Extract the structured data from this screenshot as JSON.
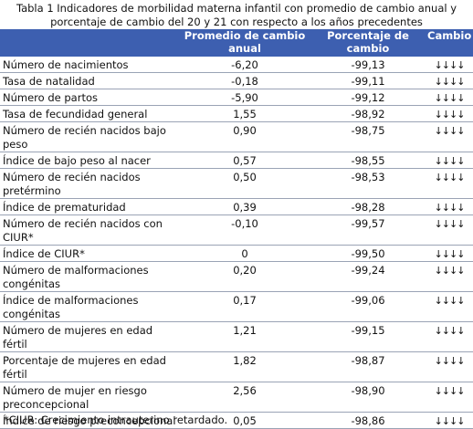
{
  "caption": "Tabla 1 Indicadores de morbilidad materna infantil con promedio de cambio anual y porcentaje de cambio del 20 y 21 con respecto a los años precedentes",
  "headers": [
    "",
    "Promedio de cambio anual",
    "Porcentaje de cambio",
    "Cambio"
  ],
  "rows": [
    {
      "label": "Número de nacimientos",
      "avg": "-6,20",
      "pct": "-99,13",
      "arrows": "↓↓↓↓"
    },
    {
      "label": "Tasa de natalidad",
      "avg": "-0,18",
      "pct": "-99,11",
      "arrows": "↓↓↓↓"
    },
    {
      "label": "Número de partos",
      "avg": "-5,90",
      "pct": "-99,12",
      "arrows": "↓↓↓↓"
    },
    {
      "label": "Tasa de fecundidad general",
      "avg": "1,55",
      "pct": "-98,92",
      "arrows": "↓↓↓↓"
    },
    {
      "label": "Número de recién nacidos bajo peso",
      "avg": "0,90",
      "pct": "-98,75",
      "arrows": "↓↓↓↓"
    },
    {
      "label": "Índice de bajo peso al nacer",
      "avg": "0,57",
      "pct": "-98,55",
      "arrows": "↓↓↓↓"
    },
    {
      "label": "Número de recién nacidos pretérmino",
      "avg": "0,50",
      "pct": "-98,53",
      "arrows": "↓↓↓↓"
    },
    {
      "label": "Índice de prematuridad",
      "avg": "0,39",
      "pct": "-98,28",
      "arrows": "↓↓↓↓"
    },
    {
      "label": "Número de recién nacidos con CIUR*",
      "avg": "-0,10",
      "pct": "-99,57",
      "arrows": "↓↓↓↓"
    },
    {
      "label": "Índice de CIUR*",
      "avg": "0",
      "pct": "-99,50",
      "arrows": "↓↓↓↓"
    },
    {
      "label": "Número de  malformaciones congénitas",
      "avg": "0,20",
      "pct": "-99,24",
      "arrows": "↓↓↓↓"
    },
    {
      "label": "Índice de malformaciones congénitas",
      "avg": "0,17",
      "pct": "-99,06",
      "arrows": "↓↓↓↓"
    },
    {
      "label": "Número de mujeres en  edad fértil",
      "avg": "1,21",
      "pct": "-99,15",
      "arrows": "↓↓↓↓"
    },
    {
      "label": "Porcentaje de mujeres en edad fértil",
      "avg": "1,82",
      "pct": "-98,87",
      "arrows": "↓↓↓↓"
    },
    {
      "label": "Número de mujer  en riesgo preconcepcional",
      "avg": "2,56",
      "pct": "-98,90",
      "arrows": "↓↓↓↓"
    },
    {
      "label": "Índice de riesgo preconcepcional",
      "avg": "0,05",
      "pct": "-98,86",
      "arrows": "↓↓↓↓"
    }
  ],
  "footnote": "*CIUR: Crecimiento intrauterino retardado.",
  "colors": {
    "header_bg": "#3d5fb0",
    "header_text": "#ffffff",
    "row_rule": "#9aa3b5"
  }
}
